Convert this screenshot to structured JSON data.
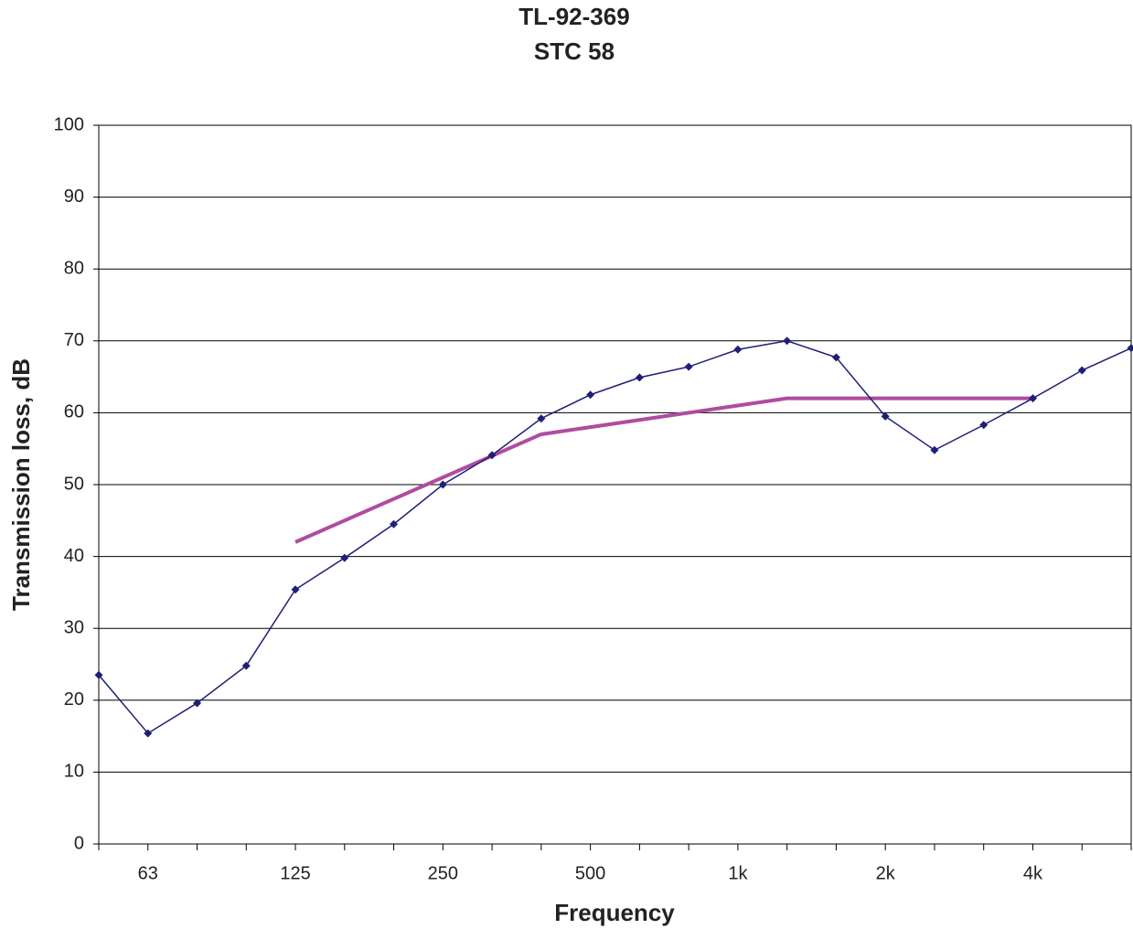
{
  "chart_data": {
    "type": "line",
    "title": "TL-92-369",
    "subtitle": "STC 58",
    "x_label": "Frequency",
    "y_label": "Transmission loss, dB",
    "categories": [
      null,
      "63",
      null,
      null,
      "125",
      null,
      null,
      "250",
      null,
      null,
      "500",
      null,
      null,
      "1k",
      null,
      null,
      "2k",
      null,
      null,
      "4k",
      null,
      null
    ],
    "series": [
      {
        "color": "#1f1f78",
        "markers": true,
        "values": [
          23.5,
          15.4,
          19.6,
          24.8,
          35.4,
          39.8,
          44.5,
          50,
          54.1,
          59.2,
          62.5,
          64.9,
          66.4,
          68.8,
          70,
          67.7,
          59.5,
          54.8,
          58.3,
          62,
          65.9,
          69
        ]
      },
      {
        "color": "#b04c9f",
        "markers": false,
        "values": [
          null,
          null,
          null,
          null,
          42,
          45,
          48,
          51,
          54,
          57,
          58,
          59,
          60,
          61,
          62,
          62,
          62,
          62,
          62,
          62,
          null,
          null
        ]
      }
    ],
    "ylim": [
      0,
      100
    ],
    "yticks": [
      0,
      10,
      20,
      30,
      40,
      50,
      60,
      70,
      80,
      90,
      100
    ],
    "grid": true
  }
}
